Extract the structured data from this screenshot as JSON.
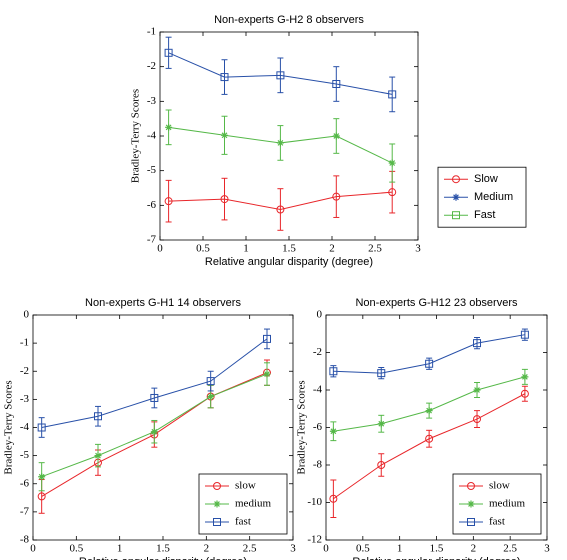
{
  "chart_data": [
    {
      "type": "line",
      "title": "Non-experts G-H2 8 observers",
      "xlabel": "Relative angular disparity (degree)",
      "ylabel": "Bradley-Terry Scores",
      "x": [
        0.1,
        0.75,
        1.4,
        2.05,
        2.7
      ],
      "xlim": [
        0,
        3
      ],
      "xticks": [
        0,
        0.5,
        1,
        1.5,
        2,
        2.5,
        3
      ],
      "ylim": [
        -7,
        -1
      ],
      "yticks": [
        -7,
        -6,
        -5,
        -4,
        -3,
        -2,
        -1
      ],
      "legend": "outside right",
      "series": [
        {
          "name": "Slow",
          "color": "#e8262a",
          "marker": "circle",
          "legend_marker": "circle",
          "values": [
            -5.88,
            -5.82,
            -6.12,
            -5.75,
            -5.62
          ],
          "errors": [
            0.6,
            0.6,
            0.6,
            0.6,
            0.6
          ]
        },
        {
          "name": "Medium",
          "color": "#2850a8",
          "marker": "square",
          "legend_marker": "star",
          "values": [
            -1.6,
            -2.3,
            -2.25,
            -2.5,
            -2.8
          ],
          "errors": [
            0.45,
            0.5,
            0.5,
            0.5,
            0.5
          ]
        },
        {
          "name": "Fast",
          "color": "#55b848",
          "marker": "star",
          "legend_marker": "square",
          "values": [
            -3.75,
            -3.98,
            -4.2,
            -4.0,
            -4.78
          ],
          "errors": [
            0.5,
            0.55,
            0.5,
            0.5,
            0.55
          ]
        }
      ]
    },
    {
      "type": "line",
      "title": "Non-experts G-H1 14 observers",
      "xlabel": "Relative angular disparity (degree)",
      "ylabel": "Bradley-Terry Scores",
      "x": [
        0.1,
        0.75,
        1.4,
        2.05,
        2.7
      ],
      "xlim": [
        0,
        3
      ],
      "xticks": [
        0,
        0.5,
        1,
        1.5,
        2,
        2.5,
        3
      ],
      "ylim": [
        -8,
        0
      ],
      "yticks": [
        -8,
        -7,
        -6,
        -5,
        -4,
        -3,
        -2,
        -1,
        0
      ],
      "legend": "lower right",
      "series": [
        {
          "name": "slow",
          "color": "#e8262a",
          "marker": "circle",
          "legend_marker": "circle",
          "values": [
            -6.45,
            -5.25,
            -4.25,
            -2.9,
            -2.05
          ],
          "errors": [
            0.6,
            0.45,
            0.45,
            0.4,
            0.45
          ]
        },
        {
          "name": "medium",
          "color": "#55b848",
          "marker": "star",
          "legend_marker": "star",
          "values": [
            -5.75,
            -5.0,
            -4.15,
            -2.9,
            -2.1
          ],
          "errors": [
            0.5,
            0.4,
            0.4,
            0.4,
            0.4
          ]
        },
        {
          "name": "fast",
          "color": "#2850a8",
          "marker": "square",
          "legend_marker": "square",
          "values": [
            -4.0,
            -3.6,
            -2.95,
            -2.35,
            -0.85
          ],
          "errors": [
            0.35,
            0.35,
            0.35,
            0.35,
            0.35
          ]
        }
      ]
    },
    {
      "type": "line",
      "title": "Non-experts G-H12 23 observers",
      "xlabel": "Relative angular disparity (degree)",
      "ylabel": "Bradley-Terry Scores",
      "x": [
        0.1,
        0.75,
        1.4,
        2.05,
        2.7
      ],
      "xlim": [
        0,
        3
      ],
      "xticks": [
        0,
        0.5,
        1,
        1.5,
        2,
        2.5,
        3
      ],
      "ylim": [
        -12,
        0
      ],
      "yticks": [
        -12,
        -10,
        -8,
        -6,
        -4,
        -2,
        0
      ],
      "legend": "lower right",
      "series": [
        {
          "name": "slow",
          "color": "#e8262a",
          "marker": "circle",
          "legend_marker": "circle",
          "values": [
            -9.8,
            -8.0,
            -6.6,
            -5.55,
            -4.2
          ],
          "errors": [
            1.0,
            0.6,
            0.45,
            0.45,
            0.4
          ]
        },
        {
          "name": "medium",
          "color": "#55b848",
          "marker": "star",
          "legend_marker": "star",
          "values": [
            -6.2,
            -5.8,
            -5.1,
            -4.0,
            -3.3
          ],
          "errors": [
            0.5,
            0.45,
            0.4,
            0.4,
            0.4
          ]
        },
        {
          "name": "fast",
          "color": "#2850a8",
          "marker": "square",
          "legend_marker": "square",
          "values": [
            -3.0,
            -3.1,
            -2.6,
            -1.5,
            -1.05
          ],
          "errors": [
            0.3,
            0.3,
            0.3,
            0.3,
            0.3
          ]
        }
      ]
    }
  ]
}
